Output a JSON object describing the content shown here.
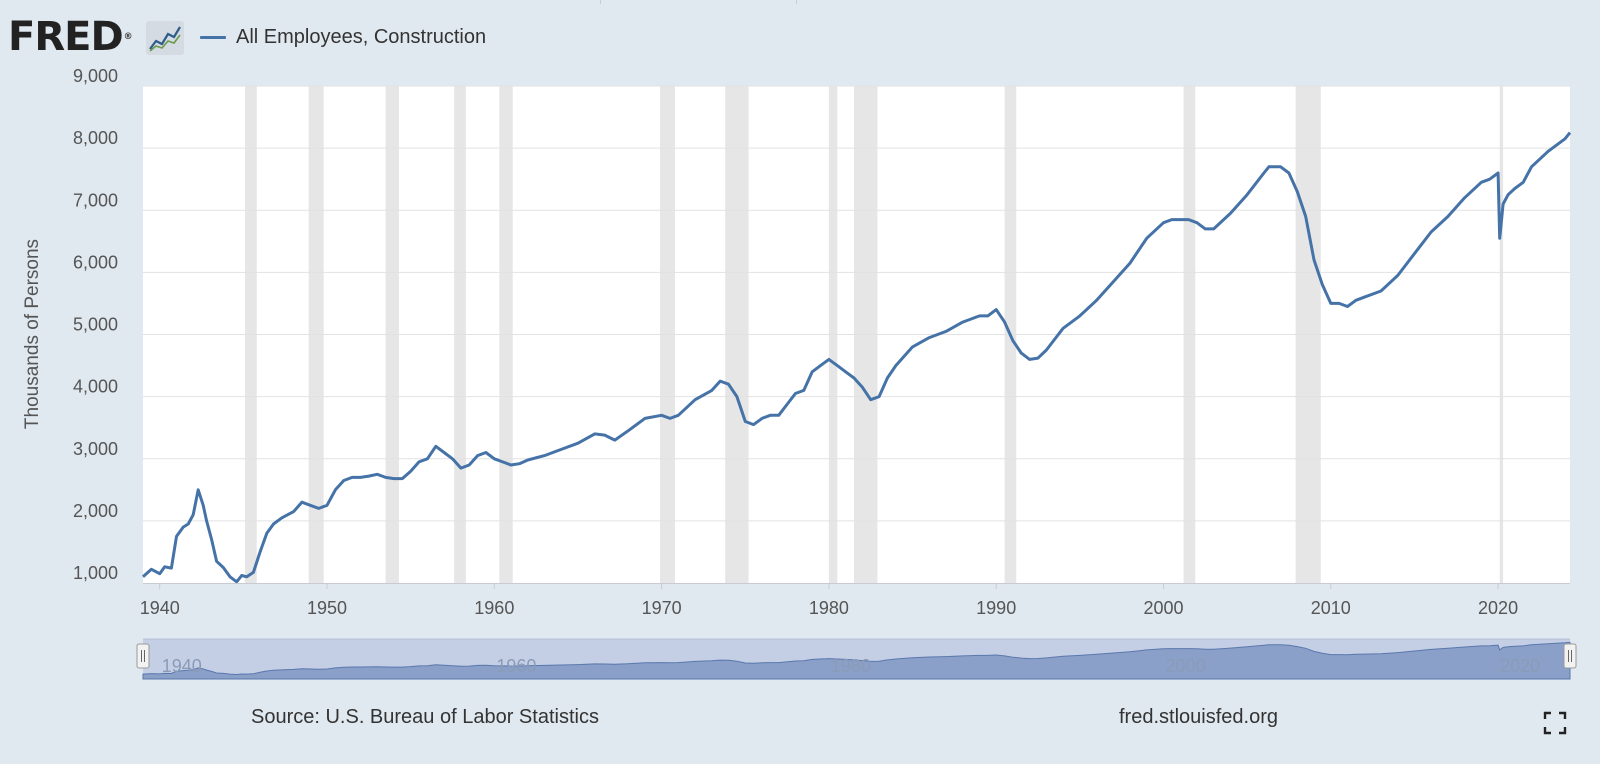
{
  "header": {
    "logo_text": "FRED",
    "logo_reg": "®",
    "legend_label": "All Employees, Construction"
  },
  "colors": {
    "series_line": "#4572a7",
    "recession_band": "#e6e6e6",
    "background": "#e1e9f0",
    "plot_background": "#ffffff",
    "navigator_fill": "#8ba0c8",
    "navigator_mask": "#c4cee4"
  },
  "chart_data": {
    "type": "line",
    "ylabel": "Thousands of Persons",
    "xlabel": "",
    "ylim": [
      1000,
      9000
    ],
    "xlim": [
      1939.0,
      2024.3
    ],
    "y_ticks": [
      1000,
      2000,
      3000,
      4000,
      5000,
      6000,
      7000,
      8000,
      9000
    ],
    "y_tick_labels": [
      "1,000",
      "2,000",
      "3,000",
      "4,000",
      "5,000",
      "6,000",
      "7,000",
      "8,000",
      "9,000"
    ],
    "x_ticks": [
      1940,
      1950,
      1960,
      1970,
      1980,
      1990,
      2000,
      2010,
      2020
    ],
    "x_tick_labels": [
      "1940",
      "1950",
      "1960",
      "1970",
      "1980",
      "1990",
      "2000",
      "2010",
      "2020"
    ],
    "grid": "horizontal",
    "recessions": [
      [
        1945.1,
        1945.8
      ],
      [
        1948.9,
        1949.8
      ],
      [
        1953.5,
        1954.3
      ],
      [
        1957.6,
        1958.3
      ],
      [
        1960.3,
        1961.1
      ],
      [
        1969.9,
        1970.8
      ],
      [
        1973.8,
        1975.2
      ],
      [
        1980.0,
        1980.5
      ],
      [
        1981.5,
        1982.9
      ],
      [
        1990.5,
        1991.2
      ],
      [
        2001.2,
        2001.9
      ],
      [
        2007.9,
        2009.4
      ],
      [
        2020.1,
        2020.3
      ]
    ],
    "series": [
      {
        "name": "All Employees, Construction",
        "x": [
          1939.0,
          1939.5,
          1940.0,
          1940.3,
          1940.7,
          1941.0,
          1941.4,
          1941.7,
          1942.0,
          1942.3,
          1942.6,
          1942.8,
          1943.1,
          1943.4,
          1943.8,
          1944.2,
          1944.6,
          1944.9,
          1945.2,
          1945.6,
          1946.0,
          1946.4,
          1946.8,
          1947.3,
          1948.0,
          1948.5,
          1949.0,
          1949.5,
          1950.0,
          1950.5,
          1951.0,
          1951.5,
          1952.0,
          1952.5,
          1953.0,
          1953.5,
          1954.0,
          1954.5,
          1955.0,
          1955.5,
          1956.0,
          1956.5,
          1957.0,
          1957.5,
          1958.0,
          1958.5,
          1959.0,
          1959.5,
          1960.0,
          1960.5,
          1961.0,
          1961.5,
          1962.0,
          1963.0,
          1964.0,
          1965.0,
          1966.0,
          1966.6,
          1967.2,
          1968.0,
          1969.0,
          1970.0,
          1970.5,
          1971.0,
          1972.0,
          1973.0,
          1973.5,
          1974.0,
          1974.5,
          1975.0,
          1975.5,
          1976.0,
          1976.5,
          1977.0,
          1978.0,
          1978.5,
          1979.0,
          1979.5,
          1980.0,
          1980.5,
          1981.0,
          1981.5,
          1982.0,
          1982.5,
          1983.0,
          1983.5,
          1984.0,
          1985.0,
          1986.0,
          1987.0,
          1988.0,
          1989.0,
          1989.5,
          1990.0,
          1990.5,
          1991.0,
          1991.5,
          1992.0,
          1992.5,
          1993.0,
          1994.0,
          1995.0,
          1996.0,
          1997.0,
          1998.0,
          1999.0,
          2000.0,
          2000.5,
          2001.0,
          2001.5,
          2002.0,
          2002.5,
          2003.0,
          2004.0,
          2005.0,
          2006.0,
          2006.3,
          2007.0,
          2007.5,
          2008.0,
          2008.5,
          2009.0,
          2009.5,
          2010.0,
          2010.5,
          2011.0,
          2011.5,
          2012.0,
          2013.0,
          2014.0,
          2015.0,
          2016.0,
          2017.0,
          2018.0,
          2019.0,
          2019.5,
          2020.0,
          2020.1,
          2020.3,
          2020.6,
          2021.0,
          2021.5,
          2022.0,
          2023.0,
          2024.0,
          2024.3
        ],
        "values": [
          1100,
          1220,
          1150,
          1260,
          1240,
          1750,
          1900,
          1950,
          2100,
          2500,
          2250,
          2000,
          1700,
          1350,
          1250,
          1100,
          1020,
          1120,
          1100,
          1170,
          1500,
          1800,
          1950,
          2050,
          2150,
          2300,
          2250,
          2200,
          2250,
          2500,
          2650,
          2700,
          2700,
          2720,
          2750,
          2700,
          2680,
          2680,
          2800,
          2950,
          3000,
          3200,
          3100,
          3000,
          2850,
          2900,
          3050,
          3100,
          3000,
          2950,
          2900,
          2920,
          2980,
          3050,
          3150,
          3250,
          3400,
          3380,
          3300,
          3450,
          3650,
          3700,
          3650,
          3700,
          3950,
          4100,
          4250,
          4200,
          4000,
          3600,
          3550,
          3650,
          3700,
          3700,
          4050,
          4100,
          4400,
          4500,
          4600,
          4500,
          4400,
          4300,
          4150,
          3950,
          4000,
          4300,
          4500,
          4800,
          4950,
          5050,
          5200,
          5300,
          5300,
          5400,
          5200,
          4900,
          4700,
          4600,
          4620,
          4750,
          5100,
          5300,
          5550,
          5850,
          6150,
          6550,
          6800,
          6850,
          6850,
          6850,
          6800,
          6700,
          6700,
          6950,
          7250,
          7600,
          7700,
          7700,
          7600,
          7300,
          6900,
          6200,
          5800,
          5500,
          5500,
          5450,
          5550,
          5600,
          5700,
          5950,
          6300,
          6650,
          6900,
          7200,
          7450,
          7500,
          7600,
          6550,
          7100,
          7250,
          7350,
          7450,
          7700,
          7950,
          8150,
          8250
        ]
      }
    ]
  },
  "navigator": {
    "tick_labels": [
      "1940",
      "1960",
      "1980",
      "2000",
      "2020"
    ],
    "tick_years": [
      1940,
      1960,
      1980,
      2000,
      2020
    ],
    "handle_left_icon": "navigator-handle-left",
    "handle_right_icon": "navigator-handle-right"
  },
  "footer": {
    "source": "Source: U.S. Bureau of Labor Statistics",
    "site": "fred.stlouisfed.org",
    "fullscreen_icon": "fullscreen-icon"
  }
}
